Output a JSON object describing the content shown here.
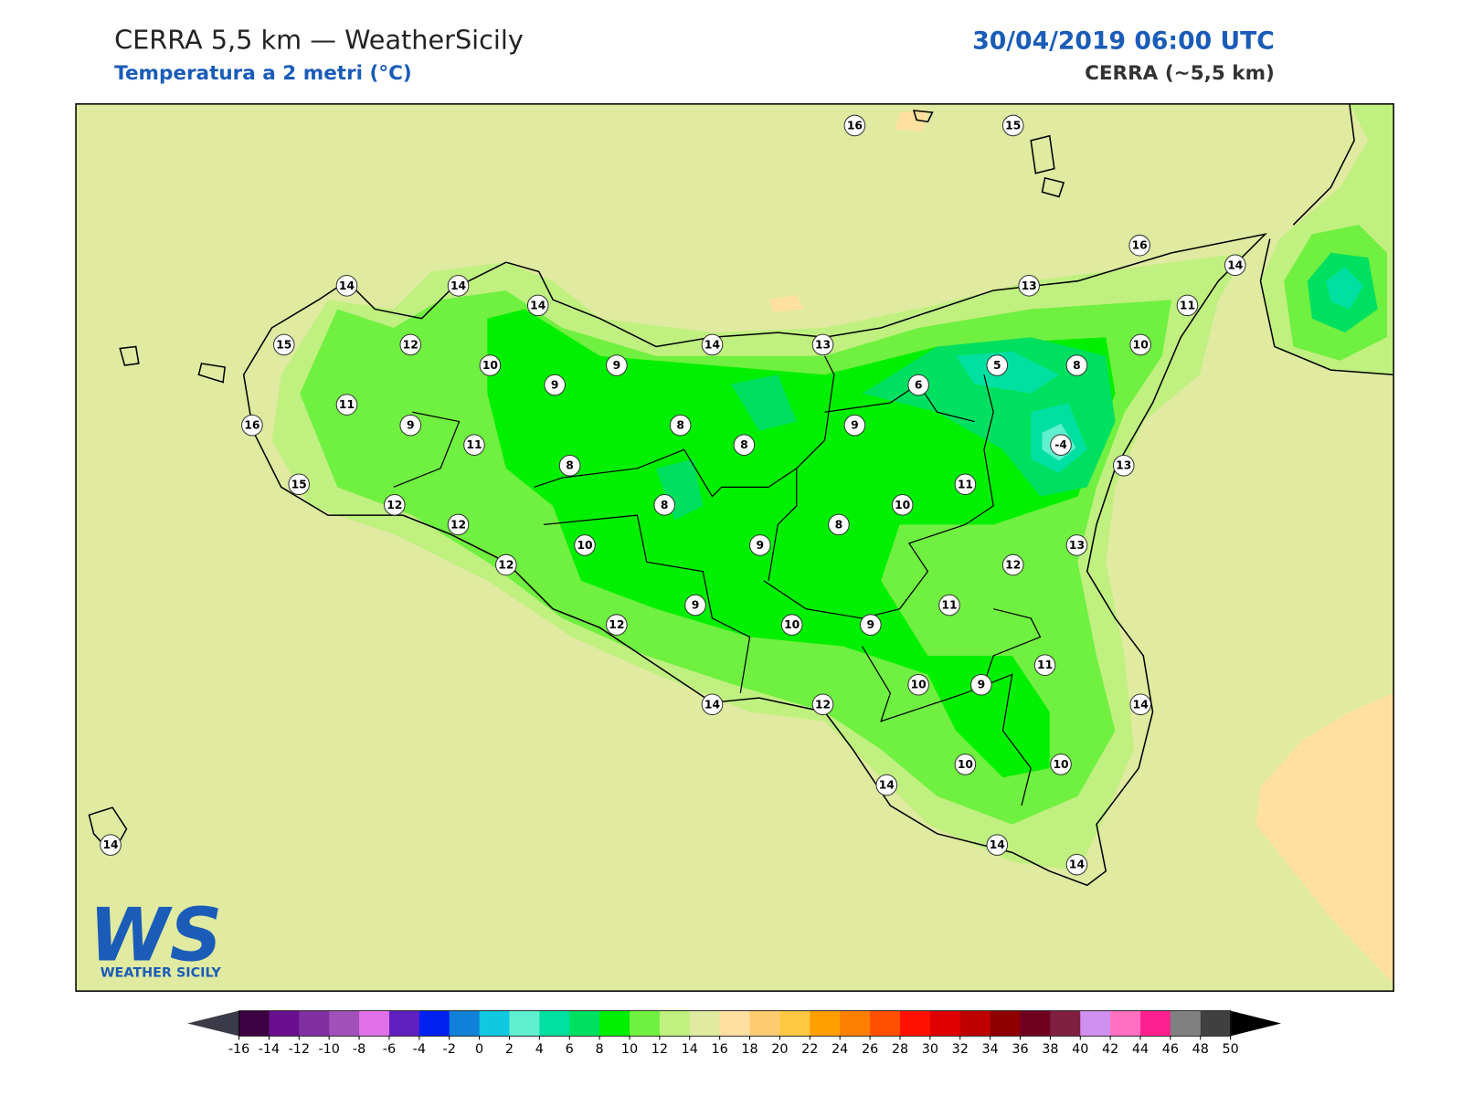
{
  "header": {
    "title": "CERRA 5,5 km — WeatherSicily",
    "subtitle": "Temperatura a 2 metri (°C)",
    "date": "30/04/2019 06:00 UTC",
    "model": "CERRA (~5,5 km)"
  },
  "map": {
    "stations": [
      16,
      15,
      16,
      14,
      13,
      11,
      14,
      14,
      14,
      15,
      12,
      10,
      9,
      14,
      13,
      10,
      5,
      8,
      9,
      6,
      11,
      16,
      9,
      8,
      9,
      11,
      8,
      -4,
      8,
      13,
      15,
      11,
      12,
      8,
      10,
      12,
      8,
      10,
      9,
      13,
      12,
      12,
      9,
      11,
      12,
      10,
      9,
      11,
      10,
      9,
      14,
      12,
      14,
      14,
      10,
      10,
      14,
      14,
      14
    ]
  },
  "logo": {
    "text": "WS",
    "caption": "WEATHER SICILY"
  },
  "colorbar": {
    "ticks": [
      -16,
      -14,
      -12,
      -10,
      -8,
      -6,
      -4,
      -2,
      0,
      2,
      4,
      6,
      8,
      10,
      12,
      14,
      16,
      18,
      20,
      22,
      24,
      26,
      28,
      30,
      32,
      34,
      36,
      38,
      40,
      42,
      44,
      46,
      48,
      50
    ],
    "colors": [
      "#3d0040",
      "#6a0f8e",
      "#8030a0",
      "#a050b8",
      "#e070e8",
      "#6020c0",
      "#0020f0",
      "#1080d8",
      "#10c8e0",
      "#60f0d0",
      "#00e0a0",
      "#00e060",
      "#00f000",
      "#70f040",
      "#c0f080",
      "#e0eaa0",
      "#ffe0a0",
      "#ffcc70",
      "#ffc840",
      "#ffa000",
      "#ff8000",
      "#ff5000",
      "#ff1000",
      "#e00000",
      "#c00000",
      "#900000",
      "#700020",
      "#802040",
      "#d090f0",
      "#ff70c0",
      "#ff2090",
      "#808080",
      "#404040"
    ],
    "under_color": "#3a3a48",
    "over_color": "#000000"
  }
}
